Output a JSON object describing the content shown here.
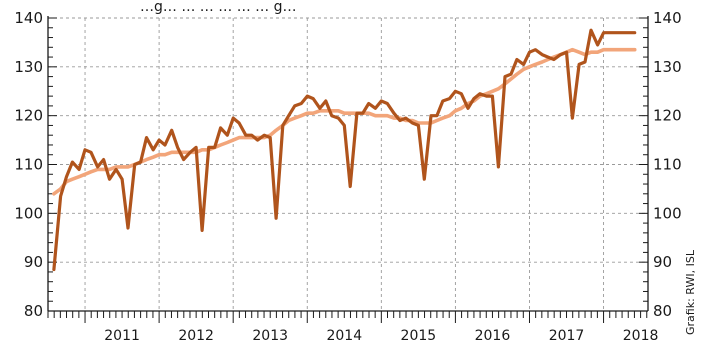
{
  "chart_data": {
    "type": "line",
    "title": "",
    "subtitle_fragment": "…g… … … … … … g…",
    "credit": "Grafik: RWI, ISL",
    "xlabel": "",
    "ylabel": "",
    "ylim": [
      80,
      140
    ],
    "y_ticks": [
      80,
      90,
      100,
      110,
      120,
      130,
      140
    ],
    "y_ticks_right": [
      80,
      90,
      100,
      110,
      120,
      130,
      140
    ],
    "x_range": [
      2010.5,
      2018.6
    ],
    "year_labels": [
      "2011",
      "2012",
      "2013",
      "2014",
      "2015",
      "2016",
      "2017",
      "2018"
    ],
    "grid": true,
    "colors": {
      "raw": "#b0541c",
      "smoothed": "#f2a57a",
      "axis": "#1a1a1a",
      "grid": "#9a9a9a"
    },
    "series": [
      {
        "name": "",
        "x": [
          2010.58,
          2010.67,
          2010.75,
          2010.83,
          2010.92,
          2011.0,
          2011.08,
          2011.17,
          2011.25,
          2011.33,
          2011.42,
          2011.5,
          2011.58,
          2011.67,
          2011.75,
          2011.83,
          2011.92,
          2012.0,
          2012.08,
          2012.17,
          2012.25,
          2012.33,
          2012.42,
          2012.5,
          2012.58,
          2012.67,
          2012.75,
          2012.83,
          2012.92,
          2013.0,
          2013.08,
          2013.17,
          2013.25,
          2013.33,
          2013.42,
          2013.5,
          2013.58,
          2013.67,
          2013.75,
          2013.83,
          2013.92,
          2014.0,
          2014.08,
          2014.17,
          2014.25,
          2014.33,
          2014.42,
          2014.5,
          2014.58,
          2014.67,
          2014.75,
          2014.83,
          2014.92,
          2015.0,
          2015.08,
          2015.17,
          2015.25,
          2015.33,
          2015.42,
          2015.5,
          2015.58,
          2015.67,
          2015.75,
          2015.83,
          2015.92,
          2016.0,
          2016.08,
          2016.17,
          2016.25,
          2016.33,
          2016.42,
          2016.5,
          2016.58,
          2016.67,
          2016.75,
          2016.83,
          2016.92,
          2017.0,
          2017.08,
          2017.17,
          2017.25,
          2017.33,
          2017.42,
          2017.5,
          2017.58,
          2017.67,
          2017.75,
          2017.83,
          2017.92,
          2018.0,
          2018.08,
          2018.17,
          2018.25,
          2018.33,
          2018.42
        ],
        "values": [
          88.5,
          103.5,
          107.5,
          110.5,
          109.0,
          113.0,
          112.5,
          109.5,
          111.0,
          107.0,
          109.0,
          107.0,
          97.0,
          110.0,
          110.5,
          115.5,
          113.0,
          115.0,
          114.0,
          117.0,
          113.5,
          111.0,
          112.5,
          113.5,
          96.5,
          113.5,
          113.5,
          117.5,
          116.0,
          119.5,
          118.5,
          116.0,
          116.0,
          115.0,
          116.0,
          115.5,
          99.0,
          118.0,
          120.0,
          122.0,
          122.5,
          124.0,
          123.5,
          121.5,
          123.0,
          120.0,
          119.5,
          118.0,
          105.5,
          120.5,
          120.5,
          122.5,
          121.5,
          123.0,
          122.5,
          120.5,
          119.0,
          119.5,
          118.5,
          118.0,
          107.0,
          120.0,
          120.0,
          123.0,
          123.5,
          125.0,
          124.5,
          121.5,
          123.5,
          124.5,
          124.0,
          124.0,
          109.5,
          128.0,
          128.5,
          131.5,
          130.5,
          133.0,
          133.5,
          132.5,
          132.0,
          131.5,
          132.5,
          133.0,
          119.5,
          130.5,
          131.0,
          137.5,
          134.5,
          137.0,
          137.0,
          137.0,
          137.0,
          137.0,
          137.0
        ]
      },
      {
        "name": "",
        "x": [
          2010.58,
          2010.67,
          2010.75,
          2010.83,
          2010.92,
          2011.0,
          2011.08,
          2011.17,
          2011.25,
          2011.33,
          2011.42,
          2011.5,
          2011.58,
          2011.67,
          2011.75,
          2011.83,
          2011.92,
          2012.0,
          2012.08,
          2012.17,
          2012.25,
          2012.33,
          2012.42,
          2012.5,
          2012.58,
          2012.67,
          2012.75,
          2012.83,
          2012.92,
          2013.0,
          2013.08,
          2013.17,
          2013.25,
          2013.33,
          2013.42,
          2013.5,
          2013.58,
          2013.67,
          2013.75,
          2013.83,
          2013.92,
          2014.0,
          2014.08,
          2014.17,
          2014.25,
          2014.33,
          2014.42,
          2014.5,
          2014.58,
          2014.67,
          2014.75,
          2014.83,
          2014.92,
          2015.0,
          2015.08,
          2015.17,
          2015.25,
          2015.33,
          2015.42,
          2015.5,
          2015.58,
          2015.67,
          2015.75,
          2015.83,
          2015.92,
          2016.0,
          2016.08,
          2016.17,
          2016.25,
          2016.33,
          2016.42,
          2016.5,
          2016.58,
          2016.67,
          2016.75,
          2016.83,
          2016.92,
          2017.0,
          2017.08,
          2017.17,
          2017.25,
          2017.33,
          2017.42,
          2017.5,
          2017.58,
          2017.67,
          2017.75,
          2017.83,
          2017.92,
          2018.0,
          2018.08,
          2018.17,
          2018.25,
          2018.33,
          2018.42
        ],
        "values": [
          104.0,
          105.0,
          106.5,
          107.0,
          107.5,
          108.0,
          108.5,
          109.0,
          109.0,
          109.0,
          109.5,
          109.5,
          109.5,
          110.0,
          110.5,
          111.0,
          111.5,
          112.0,
          112.0,
          112.5,
          112.5,
          112.5,
          112.5,
          112.5,
          113.0,
          113.0,
          113.5,
          114.0,
          114.5,
          115.0,
          115.5,
          115.5,
          115.5,
          115.5,
          115.5,
          116.0,
          117.0,
          118.0,
          119.0,
          119.5,
          120.0,
          120.5,
          120.5,
          121.0,
          121.0,
          121.0,
          121.0,
          120.5,
          120.5,
          120.5,
          120.5,
          120.5,
          120.0,
          120.0,
          120.0,
          119.5,
          119.5,
          119.0,
          119.0,
          118.5,
          118.5,
          118.5,
          119.0,
          119.5,
          120.0,
          121.0,
          121.5,
          122.5,
          123.0,
          124.0,
          124.5,
          125.0,
          125.5,
          126.5,
          127.5,
          128.5,
          129.5,
          130.0,
          130.5,
          131.0,
          131.5,
          132.0,
          132.5,
          133.0,
          133.5,
          133.0,
          132.5,
          133.0,
          133.0,
          133.5,
          133.5,
          133.5,
          133.5,
          133.5,
          133.5
        ]
      }
    ]
  }
}
